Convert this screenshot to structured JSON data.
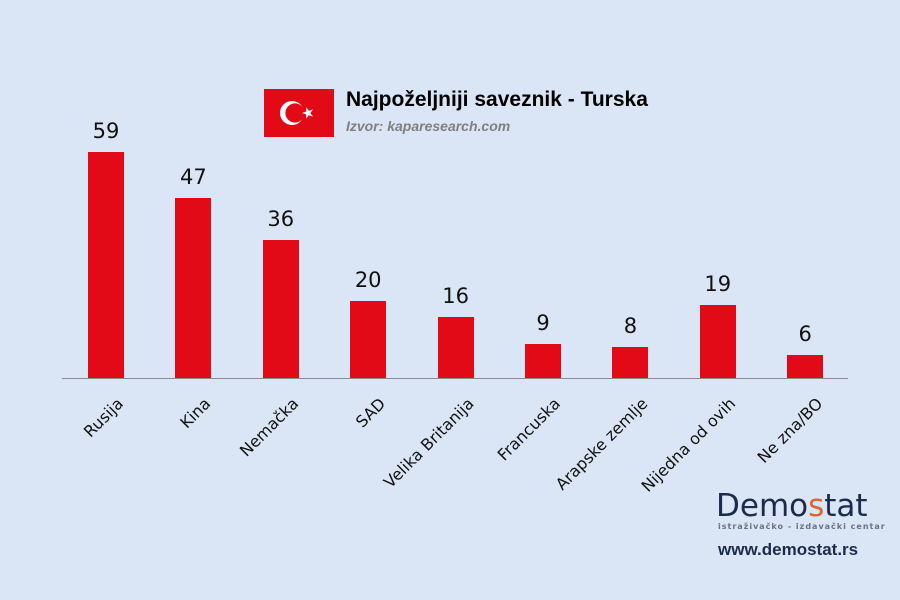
{
  "header": {
    "title": "Najpoželjniji saveznik - Turska",
    "source": "Izvor: kaparesearch.com",
    "flag": "turkey-flag-icon"
  },
  "branding": {
    "logo_prefix": "Demo",
    "logo_accent": "s",
    "logo_suffix": "tat",
    "logo_tagline": "istraživačko - izdavački  centar",
    "url": "www.demostat.rs",
    "colors": {
      "logo_dark": "#1d2b4a",
      "logo_accent": "#e2622f"
    }
  },
  "chart_data": {
    "type": "bar",
    "title": "Najpoželjniji saveznik - Turska",
    "subtitle": "Izvor: kaparesearch.com",
    "categories": [
      "Rusija",
      "Kina",
      "Nemačka",
      "SAD",
      "Velika Britanija",
      "Francuska",
      "Arapske zemlje",
      "Nijedna od ovih",
      "Ne zna/BO"
    ],
    "values": [
      59,
      47,
      36,
      20,
      16,
      9,
      8,
      19,
      6
    ],
    "xlabel": "",
    "ylabel": "",
    "ylim": [
      0,
      60
    ],
    "grid": false,
    "legend": "none",
    "data_labels": true,
    "bar_color": "#e30a17",
    "background": "#dae6f5"
  }
}
